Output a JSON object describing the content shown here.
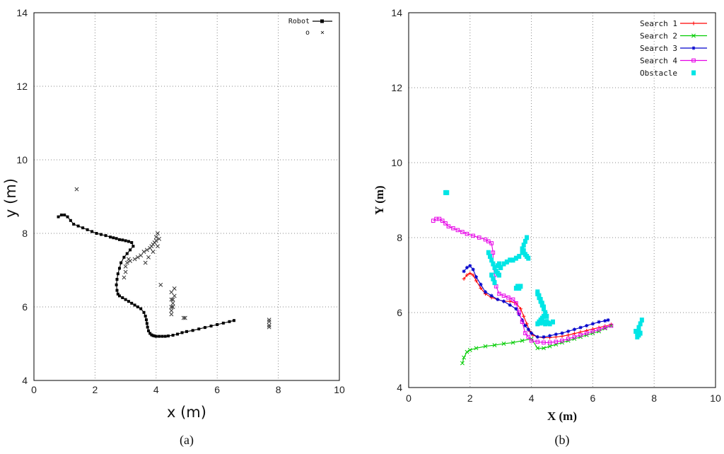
{
  "chart_data": [
    {
      "id": "a",
      "type": "scatter",
      "caption_main": "a",
      "xlabel": "x (m)",
      "ylabel": "y (m)",
      "xlim": [
        0,
        10
      ],
      "ylim": [
        4,
        14
      ],
      "xticks": [
        "0",
        "2",
        "4",
        "6",
        "8",
        "10"
      ],
      "yticks": [
        "4",
        "6",
        "8",
        "10",
        "12",
        "14"
      ],
      "grid": true,
      "legend_position": "top-right",
      "series": [
        {
          "name": "Robot",
          "marker": "square-line",
          "color": "#000000",
          "x": [
            0.8,
            0.9,
            1.0,
            1.1,
            1.2,
            1.3,
            1.45,
            1.6,
            1.75,
            1.9,
            2.05,
            2.2,
            2.35,
            2.5,
            2.6,
            2.7,
            2.8,
            2.9,
            3.0,
            3.1,
            3.2,
            3.25,
            3.15,
            3.05,
            2.95,
            2.85,
            2.8,
            2.75,
            2.72,
            2.7,
            2.72,
            2.75,
            2.8,
            2.9,
            3.0,
            3.1,
            3.2,
            3.3,
            3.4,
            3.5,
            3.6,
            3.65,
            3.68,
            3.7,
            3.72,
            3.75,
            3.8,
            3.85,
            3.9,
            3.95,
            4.0,
            4.1,
            4.2,
            4.3,
            4.4,
            4.55,
            4.7,
            4.85,
            5.0,
            5.2,
            5.4,
            5.6,
            5.8,
            6.0,
            6.2,
            6.4,
            6.55
          ],
          "y": [
            8.45,
            8.5,
            8.5,
            8.45,
            8.35,
            8.25,
            8.2,
            8.15,
            8.1,
            8.05,
            8.0,
            7.97,
            7.94,
            7.9,
            7.88,
            7.86,
            7.83,
            7.82,
            7.8,
            7.78,
            7.75,
            7.65,
            7.55,
            7.45,
            7.35,
            7.2,
            7.05,
            6.9,
            6.75,
            6.6,
            6.45,
            6.35,
            6.3,
            6.25,
            6.2,
            6.15,
            6.1,
            6.05,
            6.0,
            5.95,
            5.85,
            5.75,
            5.65,
            5.55,
            5.45,
            5.35,
            5.28,
            5.24,
            5.22,
            5.21,
            5.2,
            5.2,
            5.2,
            5.2,
            5.21,
            5.23,
            5.26,
            5.3,
            5.33,
            5.36,
            5.4,
            5.44,
            5.48,
            5.52,
            5.56,
            5.6,
            5.63
          ]
        },
        {
          "name": "",
          "label_left": "o",
          "label_right": "×",
          "marker": "cross",
          "color": "#333333",
          "x": [
            1.4,
            2.95,
            3.0,
            3.0,
            3.05,
            3.1,
            3.15,
            3.3,
            3.4,
            3.5,
            3.6,
            3.7,
            3.8,
            3.85,
            3.9,
            3.95,
            4.0,
            4.0,
            4.05,
            4.1,
            4.05,
            3.9,
            4.15,
            3.65,
            3.75,
            4.5,
            4.5,
            4.5,
            4.5,
            4.55,
            4.55,
            4.6,
            4.6,
            4.55,
            4.5,
            4.9,
            4.95,
            7.7,
            7.7,
            7.7,
            7.7
          ],
          "y": [
            9.2,
            6.8,
            6.95,
            7.1,
            7.2,
            7.3,
            7.25,
            7.3,
            7.35,
            7.4,
            7.5,
            7.55,
            7.6,
            7.65,
            7.7,
            7.75,
            7.8,
            7.9,
            8.0,
            7.85,
            7.65,
            7.5,
            6.6,
            7.2,
            7.35,
            5.8,
            6.0,
            6.2,
            6.4,
            6.0,
            6.2,
            6.3,
            6.5,
            6.1,
            5.9,
            5.7,
            5.7,
            5.5,
            5.45,
            5.6,
            5.65
          ]
        }
      ]
    },
    {
      "id": "b",
      "type": "line",
      "caption_main": "b",
      "xlabel": "X (m)",
      "ylabel": "Y (m)",
      "xlim": [
        0,
        10
      ],
      "ylim": [
        4,
        14
      ],
      "xticks": [
        "0",
        "2",
        "4",
        "6",
        "8",
        "10"
      ],
      "yticks": [
        "4",
        "6",
        "8",
        "10",
        "12",
        "14"
      ],
      "grid": true,
      "legend_position": "top-right",
      "series": [
        {
          "name": "Search 1",
          "marker": "plus",
          "color": "#ff0000",
          "x": [
            1.8,
            1.9,
            2.0,
            2.1,
            2.2,
            2.35,
            2.5,
            2.7,
            2.9,
            3.1,
            3.3,
            3.5,
            3.65,
            3.75,
            3.85,
            3.95,
            4.05,
            4.2,
            4.4,
            4.6,
            4.8,
            5.0,
            5.2,
            5.4,
            5.6,
            5.8,
            6.0,
            6.2,
            6.4,
            6.6
          ],
          "y": [
            6.9,
            7.0,
            7.05,
            7.0,
            6.85,
            6.65,
            6.5,
            6.4,
            6.35,
            6.3,
            6.3,
            6.25,
            6.1,
            5.9,
            5.7,
            5.5,
            5.4,
            5.35,
            5.33,
            5.33,
            5.35,
            5.37,
            5.4,
            5.44,
            5.48,
            5.52,
            5.56,
            5.6,
            5.64,
            5.68
          ]
        },
        {
          "name": "Search 2",
          "marker": "cross",
          "color": "#00cc00",
          "x": [
            1.75,
            1.8,
            1.9,
            2.0,
            2.2,
            2.5,
            2.8,
            3.1,
            3.4,
            3.7,
            4.0,
            4.2,
            4.4,
            4.6,
            4.8,
            5.0,
            5.2,
            5.4,
            5.6,
            5.8,
            6.0,
            6.2,
            6.4,
            6.6
          ],
          "y": [
            4.65,
            4.8,
            4.95,
            5.0,
            5.05,
            5.1,
            5.13,
            5.17,
            5.2,
            5.25,
            5.3,
            5.05,
            5.05,
            5.1,
            5.15,
            5.2,
            5.25,
            5.3,
            5.35,
            5.4,
            5.45,
            5.5,
            5.58,
            5.65
          ]
        },
        {
          "name": "Search 3",
          "marker": "star",
          "color": "#0000cc",
          "x": [
            1.8,
            1.9,
            2.0,
            2.1,
            2.2,
            2.35,
            2.5,
            2.7,
            2.9,
            3.1,
            3.3,
            3.5,
            3.6,
            3.7,
            3.8,
            3.9,
            4.0,
            4.2,
            4.4,
            4.6,
            4.8,
            5.0,
            5.2,
            5.4,
            5.6,
            5.8,
            6.0,
            6.2,
            6.4,
            6.5
          ],
          "y": [
            7.1,
            7.2,
            7.25,
            7.15,
            6.95,
            6.75,
            6.55,
            6.45,
            6.35,
            6.3,
            6.2,
            6.1,
            5.95,
            5.8,
            5.65,
            5.55,
            5.45,
            5.35,
            5.35,
            5.38,
            5.42,
            5.45,
            5.5,
            5.55,
            5.6,
            5.65,
            5.7,
            5.75,
            5.78,
            5.8
          ]
        },
        {
          "name": "Search 4",
          "marker": "square",
          "color": "#e600e6",
          "x": [
            0.8,
            0.9,
            1.0,
            1.1,
            1.2,
            1.3,
            1.45,
            1.6,
            1.75,
            1.9,
            2.1,
            2.3,
            2.5,
            2.6,
            2.7,
            2.75,
            2.75,
            2.8,
            2.85,
            2.95,
            3.1,
            3.25,
            3.4,
            3.5,
            3.6,
            3.7,
            3.8,
            3.9,
            4.0,
            4.2,
            4.4,
            4.6,
            4.8,
            5.0,
            5.2,
            5.4,
            5.6,
            5.8,
            6.0,
            6.2,
            6.4,
            6.6
          ],
          "y": [
            8.45,
            8.5,
            8.5,
            8.45,
            8.38,
            8.3,
            8.25,
            8.2,
            8.15,
            8.1,
            8.05,
            8.0,
            7.95,
            7.9,
            7.85,
            7.6,
            7.3,
            7.0,
            6.7,
            6.5,
            6.45,
            6.4,
            6.35,
            6.25,
            6.0,
            5.75,
            5.45,
            5.35,
            5.25,
            5.22,
            5.2,
            5.2,
            5.22,
            5.25,
            5.3,
            5.35,
            5.4,
            5.45,
            5.5,
            5.55,
            5.6,
            5.65
          ]
        },
        {
          "name": "Obstacle",
          "marker": "dot",
          "color": "#00e5e5",
          "x": [
            1.2,
            1.25,
            2.6,
            2.65,
            2.7,
            2.75,
            2.8,
            2.85,
            2.9,
            2.95,
            3.0,
            3.1,
            3.2,
            3.3,
            3.4,
            3.5,
            3.6,
            3.7,
            3.75,
            3.8,
            3.85,
            3.7,
            3.75,
            3.8,
            3.85,
            3.9,
            2.7,
            2.75,
            2.8,
            2.85,
            2.9,
            2.95,
            3.0,
            3.5,
            3.55,
            3.6,
            3.65,
            4.2,
            4.25,
            4.3,
            4.35,
            4.4,
            4.45,
            4.5,
            4.2,
            4.25,
            4.3,
            4.35,
            4.4,
            4.3,
            4.35,
            4.4,
            4.2,
            4.25,
            4.3,
            4.35,
            4.4,
            4.45,
            4.5,
            4.55,
            4.6,
            4.7,
            7.4,
            7.45,
            7.5,
            7.55,
            7.6,
            7.45,
            7.5,
            7.55,
            7.5
          ],
          "y": [
            9.2,
            9.2,
            7.6,
            7.5,
            7.4,
            7.3,
            7.2,
            7.1,
            7.25,
            7.3,
            7.2,
            7.3,
            7.35,
            7.4,
            7.4,
            7.45,
            7.5,
            7.6,
            7.8,
            7.9,
            8.0,
            7.7,
            7.65,
            7.55,
            7.5,
            7.45,
            7.0,
            6.9,
            6.8,
            7.1,
            7.05,
            7.0,
            7.2,
            6.65,
            6.7,
            6.65,
            6.7,
            6.5,
            6.4,
            6.3,
            6.2,
            6.1,
            6.0,
            5.9,
            6.55,
            6.45,
            6.35,
            6.25,
            6.15,
            5.8,
            5.85,
            5.9,
            5.7,
            5.75,
            5.72,
            5.78,
            5.74,
            5.7,
            5.76,
            5.72,
            5.7,
            5.75,
            5.5,
            5.45,
            5.6,
            5.7,
            5.8,
            5.35,
            5.4,
            5.45,
            5.55
          ]
        }
      ]
    }
  ],
  "captions": {
    "a": "(a)",
    "b": "(b)"
  }
}
